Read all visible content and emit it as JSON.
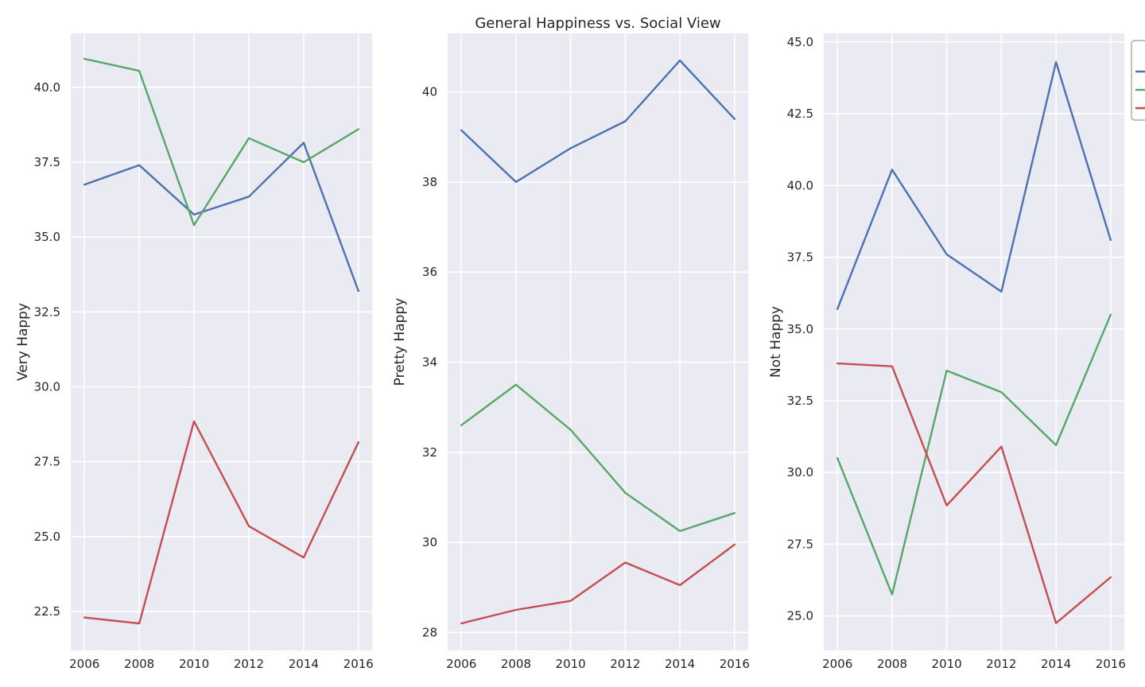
{
  "figure_title": "General Happiness vs. Social View",
  "colors": {
    "axes_bg": "#eaeaf2",
    "grid": "#ffffff",
    "text": "#262626"
  },
  "legend": {
    "placement": "upper-right, clipped at figure edge",
    "labels_visible": false
  },
  "chart_data": [
    {
      "type": "line",
      "title": "",
      "xlabel": "",
      "ylabel": "Very Happy",
      "x": [
        2006,
        2008,
        2010,
        2012,
        2014,
        2016
      ],
      "xticks": [
        "2006",
        "2008",
        "2010",
        "2012",
        "2014",
        "2016"
      ],
      "xlim": [
        2005.5,
        2016.5
      ],
      "ylim": [
        21.2,
        41.8
      ],
      "yticks": [
        "22.5",
        "25.0",
        "27.5",
        "30.0",
        "32.5",
        "35.0",
        "37.5",
        "40.0"
      ],
      "ytick_values": [
        22.5,
        25.0,
        27.5,
        30.0,
        32.5,
        35.0,
        37.5,
        40.0
      ],
      "grid": true,
      "series": [
        {
          "color": "#4c72b0",
          "values": [
            36.75,
            37.4,
            35.75,
            36.35,
            38.15,
            33.2
          ]
        },
        {
          "color": "#55a868",
          "values": [
            40.95,
            40.55,
            35.4,
            38.3,
            37.5,
            38.6
          ]
        },
        {
          "color": "#c44e52",
          "values": [
            22.3,
            22.1,
            28.85,
            25.35,
            24.3,
            28.15
          ]
        }
      ]
    },
    {
      "type": "line",
      "title": "",
      "xlabel": "",
      "ylabel": "Pretty Happy",
      "x": [
        2006,
        2008,
        2010,
        2012,
        2014,
        2016
      ],
      "xticks": [
        "2006",
        "2008",
        "2010",
        "2012",
        "2014",
        "2016"
      ],
      "xlim": [
        2005.5,
        2016.5
      ],
      "ylim": [
        27.6,
        41.3
      ],
      "yticks": [
        "28",
        "30",
        "32",
        "34",
        "36",
        "38",
        "40"
      ],
      "ytick_values": [
        28,
        30,
        32,
        34,
        36,
        38,
        40
      ],
      "grid": true,
      "series": [
        {
          "color": "#4c72b0",
          "values": [
            39.15,
            38.0,
            38.75,
            39.35,
            40.7,
            39.4
          ]
        },
        {
          "color": "#55a868",
          "values": [
            32.6,
            33.5,
            32.5,
            31.1,
            30.25,
            30.65
          ]
        },
        {
          "color": "#c44e52",
          "values": [
            28.2,
            28.5,
            28.7,
            29.55,
            29.05,
            29.95
          ]
        }
      ]
    },
    {
      "type": "line",
      "title": "",
      "xlabel": "",
      "ylabel": "Not Happy",
      "x": [
        2006,
        2008,
        2010,
        2012,
        2014,
        2016
      ],
      "xticks": [
        "2006",
        "2008",
        "2010",
        "2012",
        "2014",
        "2016"
      ],
      "xlim": [
        2005.5,
        2016.5
      ],
      "ylim": [
        23.8,
        45.3
      ],
      "yticks": [
        "25.0",
        "27.5",
        "30.0",
        "32.5",
        "35.0",
        "37.5",
        "40.0",
        "42.5",
        "45.0"
      ],
      "ytick_values": [
        25.0,
        27.5,
        30.0,
        32.5,
        35.0,
        37.5,
        40.0,
        42.5,
        45.0
      ],
      "grid": true,
      "series": [
        {
          "color": "#4c72b0",
          "values": [
            35.7,
            40.55,
            37.6,
            36.3,
            44.3,
            38.1
          ]
        },
        {
          "color": "#55a868",
          "values": [
            30.5,
            25.75,
            33.55,
            32.8,
            30.95,
            35.5
          ]
        },
        {
          "color": "#c44e52",
          "values": [
            33.8,
            33.7,
            28.85,
            30.9,
            24.75,
            26.35
          ]
        }
      ]
    }
  ]
}
